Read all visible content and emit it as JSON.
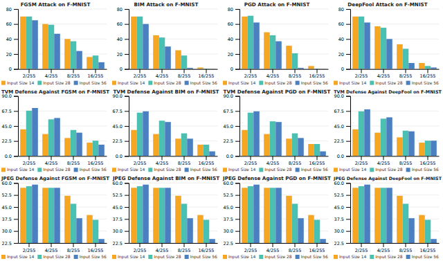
{
  "chart_data": [
    {
      "type": "bar",
      "title": "FGSM Attack on F-MNIST",
      "categories": [
        "2/255",
        "4/255",
        "8/255",
        "16/255"
      ],
      "series": [
        {
          "name": "Input Size 14",
          "color": "#F5A623",
          "values": [
            70,
            60,
            40,
            16
          ]
        },
        {
          "name": "Input Size 28",
          "color": "#4BBFB0",
          "values": [
            70,
            59,
            37,
            18
          ]
        },
        {
          "name": "Input Size 56",
          "color": "#4A7FC1",
          "values": [
            65,
            47,
            24,
            9
          ]
        }
      ],
      "ylim": [
        0,
        80
      ],
      "yticks": [
        0,
        20,
        40,
        60,
        80
      ],
      "grid": true,
      "legend": "bottom"
    },
    {
      "type": "bar",
      "title": "BIM Attack on F-MNIST",
      "categories": [
        "2/255",
        "4/255",
        "8/255",
        "16/255"
      ],
      "series": [
        {
          "name": "Input Size 14",
          "color": "#F5A623",
          "values": [
            70,
            45,
            25,
            2
          ]
        },
        {
          "name": "Input Size 28",
          "color": "#4BBFB0",
          "values": [
            70,
            42,
            18,
            0.5
          ]
        },
        {
          "name": "Input Size 56",
          "color": "#4A7FC1",
          "values": [
            60,
            30,
            1.5,
            0.3
          ]
        }
      ],
      "ylim": [
        0,
        80
      ],
      "yticks": [
        0,
        20,
        40,
        60,
        80
      ],
      "grid": true,
      "legend": "bottom"
    },
    {
      "type": "bar",
      "title": "PGD Attack on F-MNIST",
      "categories": [
        "2/255",
        "4/255",
        "8/255",
        "16/255"
      ],
      "series": [
        {
          "name": "Input Size 14",
          "color": "#F5A623",
          "values": [
            70,
            49,
            31,
            4
          ]
        },
        {
          "name": "Input Size 28",
          "color": "#4BBFB0",
          "values": [
            71,
            45,
            21,
            0.5
          ]
        },
        {
          "name": "Input Size 56",
          "color": "#4A7FC1",
          "values": [
            62,
            37,
            1.5,
            0.3
          ]
        }
      ],
      "ylim": [
        0,
        80
      ],
      "yticks": [
        0,
        20,
        40,
        60,
        80
      ],
      "grid": true,
      "legend": "bottom"
    },
    {
      "type": "bar",
      "title": "DeepFool Attack on F-MNIST",
      "categories": [
        "2/255",
        "4/255",
        "8/255",
        "16/255"
      ],
      "series": [
        {
          "name": "Input Size 14",
          "color": "#F5A623",
          "values": [
            70,
            57,
            33,
            8
          ]
        },
        {
          "name": "Input Size 28",
          "color": "#4BBFB0",
          "values": [
            70,
            55,
            27,
            4
          ]
        },
        {
          "name": "Input Size 56",
          "color": "#4A7FC1",
          "values": [
            62,
            40,
            8,
            2
          ]
        }
      ],
      "ylim": [
        0,
        80
      ],
      "yticks": [
        0,
        20,
        40,
        60,
        80
      ],
      "grid": true,
      "legend": "bottom"
    },
    {
      "type": "bar",
      "title": "TVM Defense Against FGSM on F-MNIST",
      "categories": [
        "2/255",
        "4/255",
        "8/255",
        "16/255"
      ],
      "series": [
        {
          "name": "Input Size 14",
          "color": "#F5A623",
          "values": [
            40,
            33,
            27,
            20
          ]
        },
        {
          "name": "Input Size 28",
          "color": "#4BBFB0",
          "values": [
            68,
            55,
            39,
            23
          ]
        },
        {
          "name": "Input Size 56",
          "color": "#4A7FC1",
          "values": [
            72,
            57,
            35,
            17
          ]
        }
      ],
      "ylim": [
        0,
        90
      ],
      "yticks": [
        {
          "value": 0,
          "label": "0.0"
        },
        22.5,
        {
          "value": 45,
          "label": "45.0"
        },
        67.5,
        {
          "value": 90,
          "label": "90.0"
        }
      ],
      "grid": true,
      "legend": "bottom"
    },
    {
      "type": "bar",
      "title": "TVM Defense Against BIM on F-MNIST",
      "categories": [
        "2/255",
        "4/255",
        "8/255",
        "16/255"
      ],
      "series": [
        {
          "name": "Input Size 14",
          "color": "#F5A623",
          "values": [
            39,
            33,
            26,
            17
          ]
        },
        {
          "name": "Input Size 28",
          "color": "#4BBFB0",
          "values": [
            65,
            53,
            34,
            17
          ]
        },
        {
          "name": "Input Size 56",
          "color": "#4A7FC1",
          "values": [
            67,
            51,
            26,
            7
          ]
        }
      ],
      "ylim": [
        0,
        90
      ],
      "yticks": [
        {
          "value": 0,
          "label": "0.0"
        },
        22.5,
        {
          "value": 45,
          "label": "45.0"
        },
        67.5,
        {
          "value": 90,
          "label": "90.0"
        }
      ],
      "grid": true,
      "legend": "bottom"
    },
    {
      "type": "bar",
      "title": "TVM Defense Against PGD on F-MNIST",
      "categories": [
        "2/255",
        "4/255",
        "8/255",
        "16/255"
      ],
      "series": [
        {
          "name": "Input Size 14",
          "color": "#F5A623",
          "values": [
            39,
            33,
            26,
            18
          ]
        },
        {
          "name": "Input Size 28",
          "color": "#4BBFB0",
          "values": [
            65,
            52,
            34,
            18
          ]
        },
        {
          "name": "Input Size 56",
          "color": "#4A7FC1",
          "values": [
            67,
            51,
            27,
            7
          ]
        }
      ],
      "ylim": [
        0,
        90
      ],
      "yticks": [
        {
          "value": 0,
          "label": "0.0"
        },
        22.5,
        {
          "value": 45,
          "label": "45.0"
        },
        67.5,
        {
          "value": 90,
          "label": "90.0"
        }
      ],
      "grid": true,
      "legend": "bottom"
    },
    {
      "type": "bar",
      "title": "TVM Defense Against DeepFool on F-MNIST",
      "categories": [
        "2/255",
        "4/255",
        "8/255",
        "16/255"
      ],
      "series": [
        {
          "name": "Input Size 14",
          "color": "#F5A623",
          "values": [
            40,
            35,
            28,
            20
          ]
        },
        {
          "name": "Input Size 28",
          "color": "#4BBFB0",
          "values": [
            67,
            56,
            38,
            23
          ]
        },
        {
          "name": "Input Size 56",
          "color": "#4A7FC1",
          "values": [
            70,
            58,
            37,
            23
          ]
        }
      ],
      "ylim": [
        0,
        90
      ],
      "yticks": [
        {
          "value": 0,
          "label": "0.0"
        },
        22.5,
        {
          "value": 45,
          "label": "45.0"
        },
        67.5,
        {
          "value": 90,
          "label": "90.0"
        }
      ],
      "grid": true,
      "legend": "bottom"
    },
    {
      "type": "bar",
      "title": "JPEG Defense Against FGSM on F-MNIST",
      "categories": [
        "2/255",
        "4/255",
        "8/255",
        "16/255"
      ],
      "series": [
        {
          "name": "Input Size 14",
          "color": "#F5A623",
          "values": [
            57,
            57,
            52,
            40
          ]
        },
        {
          "name": "Input Size 28",
          "color": "#4BBFB0",
          "values": [
            58,
            57,
            47,
            37
          ]
        },
        {
          "name": "Input Size 56",
          "color": "#4A7FC1",
          "values": [
            59,
            57,
            38,
            25
          ]
        }
      ],
      "ylim": [
        22.5,
        60
      ],
      "yticks": [
        22.5,
        {
          "value": 30,
          "label": "30.0"
        },
        37.5,
        {
          "value": 45,
          "label": "45.0"
        },
        52.5,
        {
          "value": 60,
          "label": "60.0"
        }
      ],
      "grid": true,
      "legend": "bottom"
    },
    {
      "type": "bar",
      "title": "JPEG Defense Against BIM on F-MNIST",
      "categories": [
        "2/255",
        "4/255",
        "8/255",
        "16/255"
      ],
      "series": [
        {
          "name": "Input Size 14",
          "color": "#F5A623",
          "values": [
            57,
            57,
            52,
            40
          ]
        },
        {
          "name": "Input Size 28",
          "color": "#4BBFB0",
          "values": [
            58,
            57,
            47,
            37
          ]
        },
        {
          "name": "Input Size 56",
          "color": "#4A7FC1",
          "values": [
            59,
            57,
            38,
            25
          ]
        }
      ],
      "ylim": [
        22.5,
        60
      ],
      "yticks": [
        22.5,
        {
          "value": 30,
          "label": "30.0"
        },
        37.5,
        {
          "value": 45,
          "label": "45.0"
        },
        52.5,
        {
          "value": 60,
          "label": "60.0"
        }
      ],
      "grid": true,
      "legend": "bottom"
    },
    {
      "type": "bar",
      "title": "JPEG Defense Against PGD on F-MNIST",
      "categories": [
        "2/255",
        "4/255",
        "8/255",
        "16/255"
      ],
      "series": [
        {
          "name": "Input Size 14",
          "color": "#F5A623",
          "values": [
            57,
            57,
            52,
            40
          ]
        },
        {
          "name": "Input Size 28",
          "color": "#4BBFB0",
          "values": [
            58,
            57,
            47,
            37
          ]
        },
        {
          "name": "Input Size 56",
          "color": "#4A7FC1",
          "values": [
            59,
            57,
            38,
            25
          ]
        }
      ],
      "ylim": [
        22.5,
        60
      ],
      "yticks": [
        22.5,
        {
          "value": 30,
          "label": "30.0"
        },
        37.5,
        {
          "value": 45,
          "label": "45.0"
        },
        52.5,
        {
          "value": 60,
          "label": "60.0"
        }
      ],
      "grid": true,
      "legend": "bottom"
    },
    {
      "type": "bar",
      "title": "JPEG Defense Against DeepFool on F-MNIST",
      "categories": [
        "2/255",
        "4/255",
        "8/255",
        "16/255"
      ],
      "series": [
        {
          "name": "Input Size 14",
          "color": "#F5A623",
          "values": [
            57,
            57,
            52,
            40
          ]
        },
        {
          "name": "Input Size 28",
          "color": "#4BBFB0",
          "values": [
            58,
            57,
            47,
            37
          ]
        },
        {
          "name": "Input Size 56",
          "color": "#4A7FC1",
          "values": [
            59,
            57,
            38,
            25
          ]
        }
      ],
      "ylim": [
        22.5,
        60
      ],
      "yticks": [
        22.5,
        {
          "value": 30,
          "label": "30.0"
        },
        37.5,
        {
          "value": 45,
          "label": "45.0"
        },
        52.5,
        {
          "value": 60,
          "label": "60.0"
        }
      ],
      "grid": true,
      "legend": "bottom"
    }
  ]
}
